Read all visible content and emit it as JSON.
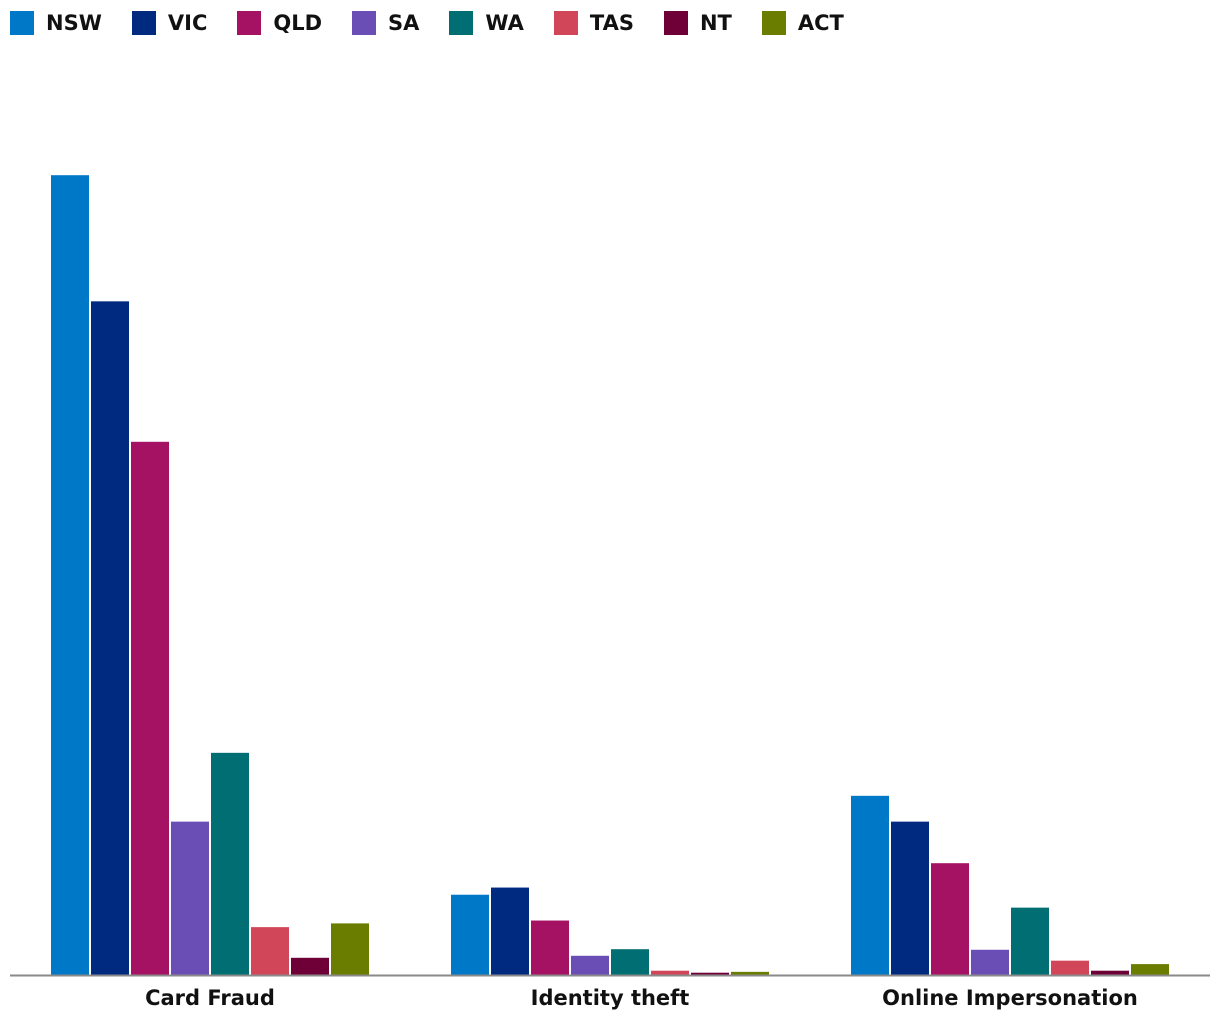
{
  "chart_data": {
    "type": "bar",
    "categories": [
      "Card Fraud",
      "Identity theft",
      "Online Impersonation"
    ],
    "series": [
      {
        "name": "NSW",
        "color": "#0078c8",
        "values": [
          279,
          28,
          62.5
        ]
      },
      {
        "name": "VIC",
        "color": "#002a7f",
        "values": [
          235,
          30.5,
          53.5
        ]
      },
      {
        "name": "QLD",
        "color": "#a51264",
        "values": [
          186,
          19,
          39
        ]
      },
      {
        "name": "SA",
        "color": "#6a4db5",
        "values": [
          53.5,
          6.7,
          8.8
        ]
      },
      {
        "name": "WA",
        "color": "#006e73",
        "values": [
          77.5,
          9,
          23.5
        ]
      },
      {
        "name": "TAS",
        "color": "#d2465a",
        "values": [
          16.7,
          1.5,
          5
        ]
      },
      {
        "name": "NT",
        "color": "#6e0037",
        "values": [
          6,
          0.8,
          1.5
        ]
      },
      {
        "name": "ACT",
        "color": "#6b7d00",
        "values": [
          18,
          1.1,
          3.8
        ]
      }
    ],
    "ylim": [
      0,
      300
    ],
    "legend_position": "top-left",
    "grid": false
  }
}
